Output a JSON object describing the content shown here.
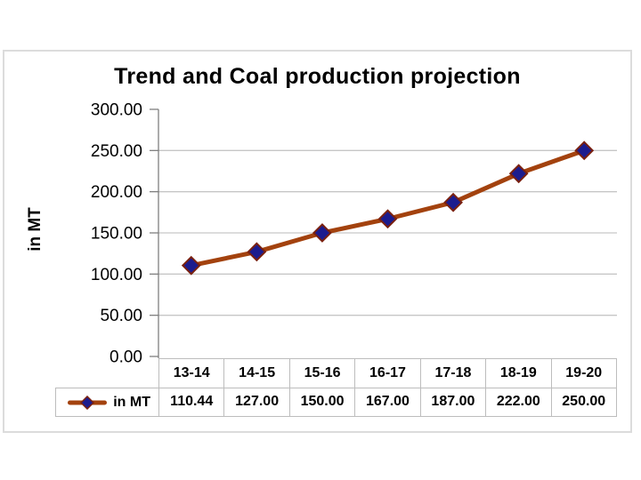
{
  "chart": {
    "title": "Trend and Coal production projection",
    "y_axis_label": "in MT",
    "y_tick_labels": [
      "300.00",
      "250.00",
      "200.00",
      "150.00",
      "100.00",
      "50.00",
      "0.00"
    ],
    "colors": {
      "series_line": "#a3420e",
      "marker_fill": "#1c1c8e",
      "marker_stroke": "#7a2110",
      "gridline": "#c6c6c6",
      "axis": "#7f7f7f",
      "table_border": "#bdbdbd",
      "frame_border": "#dcdcdc",
      "text": "#000000"
    }
  },
  "chart_data": {
    "type": "line",
    "title": "Trend and Coal production projection",
    "xlabel": "",
    "ylabel": "in MT",
    "categories": [
      "13-14",
      "14-15",
      "15-16",
      "16-17",
      "17-18",
      "18-19",
      "19-20"
    ],
    "series": [
      {
        "name": "in MT",
        "values": [
          110.44,
          127.0,
          150.0,
          167.0,
          187.0,
          222.0,
          250.0
        ]
      }
    ],
    "value_labels": [
      "110.44",
      "127.00",
      "150.00",
      "167.00",
      "187.00",
      "222.00",
      "250.00"
    ],
    "ylim": [
      0,
      300
    ],
    "y_step": 50,
    "grid": true,
    "marker": "diamond",
    "legend_position": "data-table"
  }
}
